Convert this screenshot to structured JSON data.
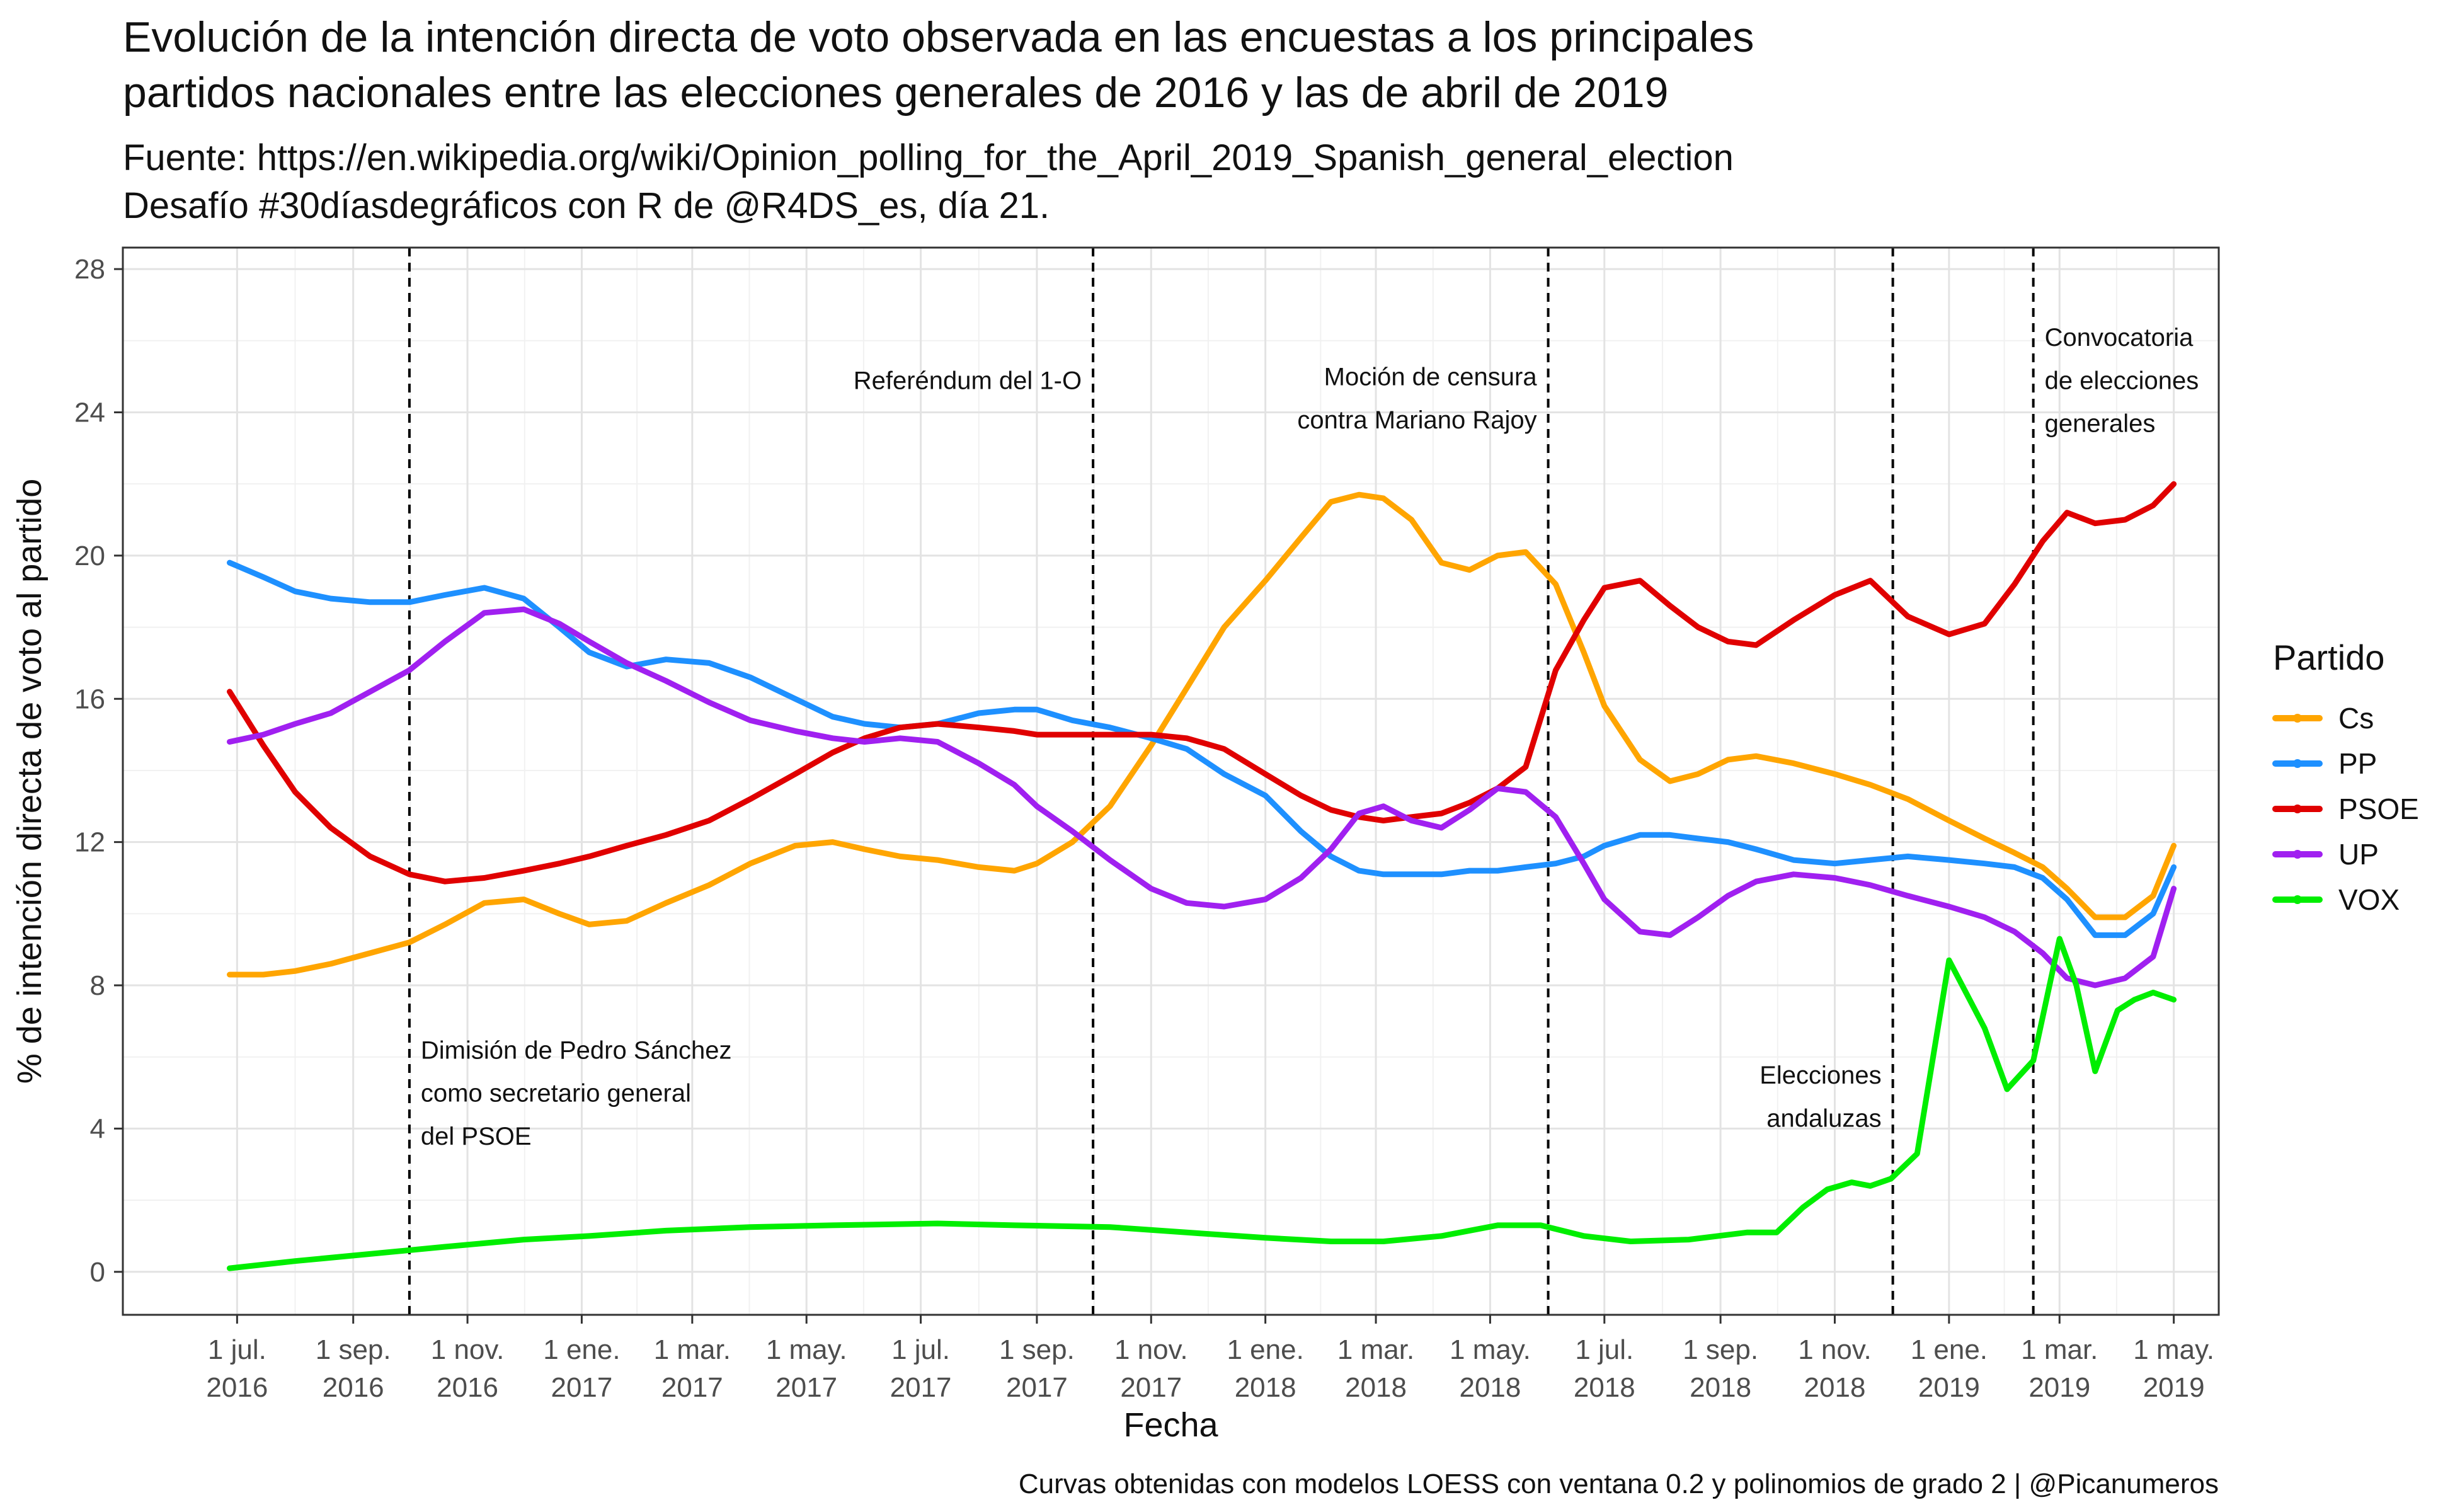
{
  "chart_data": {
    "type": "line",
    "title_lines": [
      "Evolución de la intención directa de voto observada en las encuestas a los principales",
      "partidos nacionales entre las elecciones generales de 2016 y las de abril de 2019"
    ],
    "subtitle_lines": [
      "Fuente: https://en.wikipedia.org/wiki/Opinion_polling_for_the_April_2019_Spanish_general_election",
      "Desafío #30díasdegráficos con R de @R4DS_es, día 21."
    ],
    "caption": "Curvas obtenidas con modelos LOESS con ventana 0.2 y polinomios de grado 2 | @Picanumeros",
    "xlabel": "Fecha",
    "ylabel": "% de intención directa de voto al partido",
    "xlim": [
      "2016-05-01",
      "2019-05-25"
    ],
    "ylim": [
      -1.2,
      28.6
    ],
    "yticks": [
      0,
      4,
      8,
      12,
      16,
      20,
      24,
      28
    ],
    "xticks": [
      {
        "date": "2016-07-01",
        "label": [
          "1 jul.",
          "2016"
        ]
      },
      {
        "date": "2016-09-01",
        "label": [
          "1 sep.",
          "2016"
        ]
      },
      {
        "date": "2016-11-01",
        "label": [
          "1 nov.",
          "2016"
        ]
      },
      {
        "date": "2017-01-01",
        "label": [
          "1 ene.",
          "2017"
        ]
      },
      {
        "date": "2017-03-01",
        "label": [
          "1 mar.",
          "2017"
        ]
      },
      {
        "date": "2017-05-01",
        "label": [
          "1 may.",
          "2017"
        ]
      },
      {
        "date": "2017-07-01",
        "label": [
          "1 jul.",
          "2017"
        ]
      },
      {
        "date": "2017-09-01",
        "label": [
          "1 sep.",
          "2017"
        ]
      },
      {
        "date": "2017-11-01",
        "label": [
          "1 nov.",
          "2017"
        ]
      },
      {
        "date": "2018-01-01",
        "label": [
          "1 ene.",
          "2018"
        ]
      },
      {
        "date": "2018-03-01",
        "label": [
          "1 mar.",
          "2018"
        ]
      },
      {
        "date": "2018-05-01",
        "label": [
          "1 may.",
          "2018"
        ]
      },
      {
        "date": "2018-07-01",
        "label": [
          "1 jul.",
          "2018"
        ]
      },
      {
        "date": "2018-09-01",
        "label": [
          "1 sep.",
          "2018"
        ]
      },
      {
        "date": "2018-11-01",
        "label": [
          "1 nov.",
          "2018"
        ]
      },
      {
        "date": "2019-01-01",
        "label": [
          "1 ene.",
          "2019"
        ]
      },
      {
        "date": "2019-03-01",
        "label": [
          "1 mar.",
          "2019"
        ]
      },
      {
        "date": "2019-05-01",
        "label": [
          "1 may.",
          "2019"
        ]
      }
    ],
    "grid": true,
    "legend": {
      "title": "Partido",
      "position": "right"
    },
    "events": [
      {
        "date": "2016-10-01",
        "label": [
          "Dimisión de Pedro Sánchez",
          "como secretario general",
          "del PSOE"
        ],
        "side": "right",
        "label_y": [
          6.2,
          5.0,
          3.8
        ]
      },
      {
        "date": "2017-10-01",
        "label": [
          "Referéndum del 1-O"
        ],
        "side": "left",
        "label_y": [
          24.9
        ]
      },
      {
        "date": "2018-06-01",
        "label": [
          "Moción de censura",
          "contra Mariano Rajoy"
        ],
        "side": "left",
        "label_y": [
          25.0,
          23.8
        ]
      },
      {
        "date": "2018-12-02",
        "label": [
          "Elecciones",
          "andaluzas"
        ],
        "side": "left",
        "label_y": [
          5.5,
          4.3
        ]
      },
      {
        "date": "2019-02-15",
        "label": [
          "Convocatoria",
          "de elecciones",
          "generales"
        ],
        "side": "right",
        "label_y": [
          26.1,
          24.9,
          23.7
        ]
      }
    ],
    "series": [
      {
        "name": "Cs",
        "color": "#FFA500",
        "x": [
          "2016-06-27",
          "2016-07-15",
          "2016-08-01",
          "2016-08-20",
          "2016-09-10",
          "2016-10-01",
          "2016-10-20",
          "2016-11-10",
          "2016-12-01",
          "2016-12-20",
          "2017-01-05",
          "2017-01-25",
          "2017-02-15",
          "2017-03-10",
          "2017-04-01",
          "2017-04-25",
          "2017-05-15",
          "2017-06-01",
          "2017-06-20",
          "2017-07-10",
          "2017-08-01",
          "2017-08-20",
          "2017-09-01",
          "2017-09-20",
          "2017-10-10",
          "2017-11-01",
          "2017-11-20",
          "2017-12-10",
          "2018-01-01",
          "2018-01-20",
          "2018-02-05",
          "2018-02-20",
          "2018-03-05",
          "2018-03-20",
          "2018-04-05",
          "2018-04-20",
          "2018-05-05",
          "2018-05-20",
          "2018-06-05",
          "2018-06-20",
          "2018-07-01",
          "2018-07-20",
          "2018-08-05",
          "2018-08-20",
          "2018-09-05",
          "2018-09-20",
          "2018-10-10",
          "2018-11-01",
          "2018-11-20",
          "2018-12-10",
          "2019-01-01",
          "2019-01-20",
          "2019-02-05",
          "2019-02-20",
          "2019-03-05",
          "2019-03-20",
          "2019-04-05",
          "2019-04-20",
          "2019-05-01"
        ],
        "y": [
          8.3,
          8.3,
          8.4,
          8.6,
          8.9,
          9.2,
          9.7,
          10.3,
          10.4,
          10.0,
          9.7,
          9.8,
          10.3,
          10.8,
          11.4,
          11.9,
          12.0,
          11.8,
          11.6,
          11.5,
          11.3,
          11.2,
          11.4,
          12.0,
          13.0,
          14.7,
          16.3,
          18.0,
          19.3,
          20.5,
          21.5,
          21.7,
          21.6,
          21.0,
          19.8,
          19.6,
          20.0,
          20.1,
          19.2,
          17.3,
          15.8,
          14.3,
          13.7,
          13.9,
          14.3,
          14.4,
          14.2,
          13.9,
          13.6,
          13.2,
          12.6,
          12.1,
          11.7,
          11.3,
          10.7,
          9.9,
          9.9,
          10.5,
          11.9
        ]
      },
      {
        "name": "PP",
        "color": "#1E90FF",
        "x": [
          "2016-06-27",
          "2016-07-15",
          "2016-08-01",
          "2016-08-20",
          "2016-09-10",
          "2016-10-01",
          "2016-10-20",
          "2016-11-10",
          "2016-12-01",
          "2016-12-20",
          "2017-01-05",
          "2017-01-25",
          "2017-02-15",
          "2017-03-10",
          "2017-04-01",
          "2017-04-25",
          "2017-05-15",
          "2017-06-01",
          "2017-06-20",
          "2017-07-10",
          "2017-08-01",
          "2017-08-20",
          "2017-09-01",
          "2017-09-20",
          "2017-10-10",
          "2017-11-01",
          "2017-11-20",
          "2017-12-10",
          "2018-01-01",
          "2018-01-20",
          "2018-02-05",
          "2018-02-20",
          "2018-03-05",
          "2018-03-20",
          "2018-04-05",
          "2018-04-20",
          "2018-05-05",
          "2018-05-20",
          "2018-06-05",
          "2018-06-20",
          "2018-07-01",
          "2018-07-20",
          "2018-08-05",
          "2018-08-20",
          "2018-09-05",
          "2018-09-20",
          "2018-10-10",
          "2018-11-01",
          "2018-11-20",
          "2018-12-10",
          "2019-01-01",
          "2019-01-20",
          "2019-02-05",
          "2019-02-20",
          "2019-03-05",
          "2019-03-20",
          "2019-04-05",
          "2019-04-20",
          "2019-05-01"
        ],
        "y": [
          19.8,
          19.4,
          19.0,
          18.8,
          18.7,
          18.7,
          18.9,
          19.1,
          18.8,
          18.0,
          17.3,
          16.9,
          17.1,
          17.0,
          16.6,
          16.0,
          15.5,
          15.3,
          15.2,
          15.3,
          15.6,
          15.7,
          15.7,
          15.4,
          15.2,
          14.9,
          14.6,
          13.9,
          13.3,
          12.3,
          11.6,
          11.2,
          11.1,
          11.1,
          11.1,
          11.2,
          11.2,
          11.3,
          11.4,
          11.6,
          11.9,
          12.2,
          12.2,
          12.1,
          12.0,
          11.8,
          11.5,
          11.4,
          11.5,
          11.6,
          11.5,
          11.4,
          11.3,
          11.0,
          10.4,
          9.4,
          9.4,
          10.0,
          11.3
        ]
      },
      {
        "name": "PSOE",
        "color": "#E00000",
        "x": [
          "2016-06-27",
          "2016-07-15",
          "2016-08-01",
          "2016-08-20",
          "2016-09-10",
          "2016-10-01",
          "2016-10-20",
          "2016-11-10",
          "2016-12-01",
          "2016-12-20",
          "2017-01-05",
          "2017-01-25",
          "2017-02-15",
          "2017-03-10",
          "2017-04-01",
          "2017-04-25",
          "2017-05-15",
          "2017-06-01",
          "2017-06-20",
          "2017-07-10",
          "2017-08-01",
          "2017-08-20",
          "2017-09-01",
          "2017-09-20",
          "2017-10-10",
          "2017-11-01",
          "2017-11-20",
          "2017-12-10",
          "2018-01-01",
          "2018-01-20",
          "2018-02-05",
          "2018-02-20",
          "2018-03-05",
          "2018-03-20",
          "2018-04-05",
          "2018-04-20",
          "2018-05-05",
          "2018-05-20",
          "2018-06-05",
          "2018-06-20",
          "2018-07-01",
          "2018-07-20",
          "2018-08-05",
          "2018-08-20",
          "2018-09-05",
          "2018-09-20",
          "2018-10-10",
          "2018-11-01",
          "2018-11-20",
          "2018-12-10",
          "2019-01-01",
          "2019-01-20",
          "2019-02-05",
          "2019-02-20",
          "2019-03-05",
          "2019-03-20",
          "2019-04-05",
          "2019-04-20",
          "2019-05-01"
        ],
        "y": [
          16.2,
          14.7,
          13.4,
          12.4,
          11.6,
          11.1,
          10.9,
          11.0,
          11.2,
          11.4,
          11.6,
          11.9,
          12.2,
          12.6,
          13.2,
          13.9,
          14.5,
          14.9,
          15.2,
          15.3,
          15.2,
          15.1,
          15.0,
          15.0,
          15.0,
          15.0,
          14.9,
          14.6,
          13.9,
          13.3,
          12.9,
          12.7,
          12.6,
          12.7,
          12.8,
          13.1,
          13.5,
          14.1,
          16.8,
          18.2,
          19.1,
          19.3,
          18.6,
          18.0,
          17.6,
          17.5,
          18.2,
          18.9,
          19.3,
          18.3,
          17.8,
          18.1,
          19.2,
          20.4,
          21.2,
          20.9,
          21.0,
          21.4,
          22.0
        ]
      },
      {
        "name": "UP",
        "color": "#A020F0",
        "x": [
          "2016-06-27",
          "2016-07-15",
          "2016-08-01",
          "2016-08-20",
          "2016-09-10",
          "2016-10-01",
          "2016-10-20",
          "2016-11-10",
          "2016-12-01",
          "2016-12-20",
          "2017-01-05",
          "2017-01-25",
          "2017-02-15",
          "2017-03-10",
          "2017-04-01",
          "2017-04-25",
          "2017-05-15",
          "2017-06-01",
          "2017-06-20",
          "2017-07-10",
          "2017-08-01",
          "2017-08-20",
          "2017-09-01",
          "2017-09-20",
          "2017-10-10",
          "2017-11-01",
          "2017-11-20",
          "2017-12-10",
          "2018-01-01",
          "2018-01-20",
          "2018-02-05",
          "2018-02-20",
          "2018-03-05",
          "2018-03-20",
          "2018-04-05",
          "2018-04-20",
          "2018-05-05",
          "2018-05-20",
          "2018-06-05",
          "2018-06-20",
          "2018-07-01",
          "2018-07-20",
          "2018-08-05",
          "2018-08-20",
          "2018-09-05",
          "2018-09-20",
          "2018-10-10",
          "2018-11-01",
          "2018-11-20",
          "2018-12-10",
          "2019-01-01",
          "2019-01-20",
          "2019-02-05",
          "2019-02-20",
          "2019-03-05",
          "2019-03-20",
          "2019-04-05",
          "2019-04-20",
          "2019-05-01"
        ],
        "y": [
          14.8,
          15.0,
          15.3,
          15.6,
          16.2,
          16.8,
          17.6,
          18.4,
          18.5,
          18.1,
          17.6,
          17.0,
          16.5,
          15.9,
          15.4,
          15.1,
          14.9,
          14.8,
          14.9,
          14.8,
          14.2,
          13.6,
          13.0,
          12.3,
          11.5,
          10.7,
          10.3,
          10.2,
          10.4,
          11.0,
          11.8,
          12.8,
          13.0,
          12.6,
          12.4,
          12.9,
          13.5,
          13.4,
          12.7,
          11.4,
          10.4,
          9.5,
          9.4,
          9.9,
          10.5,
          10.9,
          11.1,
          11.0,
          10.8,
          10.5,
          10.2,
          9.9,
          9.5,
          8.9,
          8.2,
          8.0,
          8.2,
          8.8,
          10.7
        ]
      },
      {
        "name": "VOX",
        "color": "#00EE00",
        "x": [
          "2016-06-27",
          "2016-08-01",
          "2016-09-10",
          "2016-10-20",
          "2016-12-01",
          "2017-01-05",
          "2017-02-15",
          "2017-04-01",
          "2017-05-15",
          "2017-07-10",
          "2017-08-20",
          "2017-10-10",
          "2017-11-20",
          "2018-01-01",
          "2018-02-05",
          "2018-03-05",
          "2018-04-05",
          "2018-05-05",
          "2018-05-28",
          "2018-06-20",
          "2018-07-15",
          "2018-08-15",
          "2018-09-15",
          "2018-10-01",
          "2018-10-15",
          "2018-10-28",
          "2018-11-10",
          "2018-11-20",
          "2018-12-01",
          "2018-12-15",
          "2019-01-01",
          "2019-01-20",
          "2019-02-01",
          "2019-02-15",
          "2019-03-01",
          "2019-03-10",
          "2019-03-20",
          "2019-04-01",
          "2019-04-10",
          "2019-04-20",
          "2019-05-01"
        ],
        "y": [
          0.1,
          0.3,
          0.5,
          0.7,
          0.9,
          1.0,
          1.15,
          1.25,
          1.3,
          1.35,
          1.3,
          1.25,
          1.1,
          0.95,
          0.85,
          0.85,
          1.0,
          1.3,
          1.3,
          1.0,
          0.85,
          0.9,
          1.1,
          1.1,
          1.8,
          2.3,
          2.5,
          2.4,
          2.6,
          3.3,
          8.7,
          6.8,
          5.1,
          5.9,
          9.3,
          8.0,
          5.6,
          7.3,
          7.6,
          7.8,
          7.6
        ]
      }
    ]
  }
}
